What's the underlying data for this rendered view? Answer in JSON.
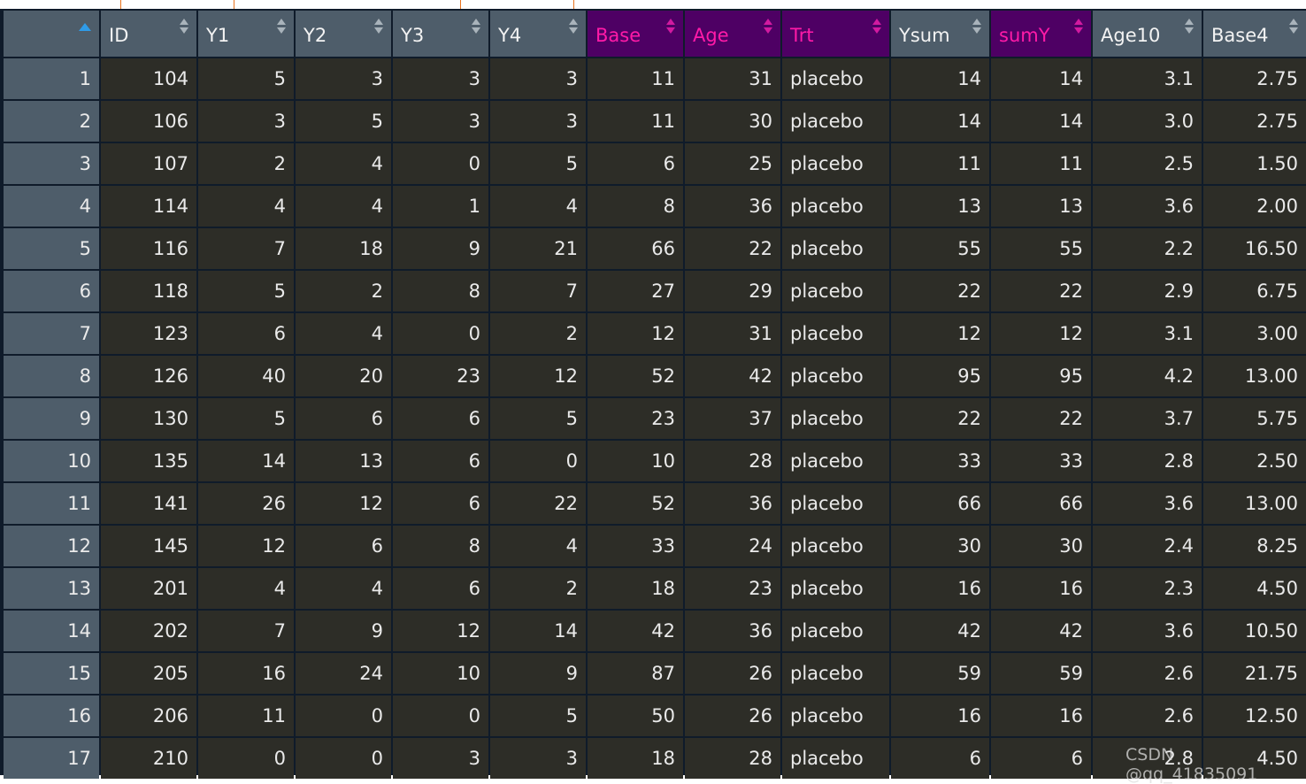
{
  "columns": [
    {
      "key": "rn",
      "label": "",
      "highlight": false,
      "align": "num"
    },
    {
      "key": "ID",
      "label": "ID",
      "highlight": false,
      "align": "num"
    },
    {
      "key": "Y1",
      "label": "Y1",
      "highlight": false,
      "align": "num"
    },
    {
      "key": "Y2",
      "label": "Y2",
      "highlight": false,
      "align": "num"
    },
    {
      "key": "Y3",
      "label": "Y3",
      "highlight": false,
      "align": "num"
    },
    {
      "key": "Y4",
      "label": "Y4",
      "highlight": false,
      "align": "num"
    },
    {
      "key": "Base",
      "label": "Base",
      "highlight": true,
      "align": "num"
    },
    {
      "key": "Age",
      "label": "Age",
      "highlight": true,
      "align": "num"
    },
    {
      "key": "Trt",
      "label": "Trt",
      "highlight": true,
      "align": "left"
    },
    {
      "key": "Ysum",
      "label": "Ysum",
      "highlight": false,
      "align": "num"
    },
    {
      "key": "sumY",
      "label": "sumY",
      "highlight": true,
      "align": "num"
    },
    {
      "key": "Age10",
      "label": "Age10",
      "highlight": false,
      "align": "num"
    },
    {
      "key": "Base4",
      "label": "Base4",
      "highlight": false,
      "align": "num"
    }
  ],
  "sort": {
    "column": "rn",
    "direction": "ascending"
  },
  "rows": [
    [
      "1",
      "104",
      "5",
      "3",
      "3",
      "3",
      "11",
      "31",
      "placebo",
      "14",
      "14",
      "3.1",
      "2.75"
    ],
    [
      "2",
      "106",
      "3",
      "5",
      "3",
      "3",
      "11",
      "30",
      "placebo",
      "14",
      "14",
      "3.0",
      "2.75"
    ],
    [
      "3",
      "107",
      "2",
      "4",
      "0",
      "5",
      "6",
      "25",
      "placebo",
      "11",
      "11",
      "2.5",
      "1.50"
    ],
    [
      "4",
      "114",
      "4",
      "4",
      "1",
      "4",
      "8",
      "36",
      "placebo",
      "13",
      "13",
      "3.6",
      "2.00"
    ],
    [
      "5",
      "116",
      "7",
      "18",
      "9",
      "21",
      "66",
      "22",
      "placebo",
      "55",
      "55",
      "2.2",
      "16.50"
    ],
    [
      "6",
      "118",
      "5",
      "2",
      "8",
      "7",
      "27",
      "29",
      "placebo",
      "22",
      "22",
      "2.9",
      "6.75"
    ],
    [
      "7",
      "123",
      "6",
      "4",
      "0",
      "2",
      "12",
      "31",
      "placebo",
      "12",
      "12",
      "3.1",
      "3.00"
    ],
    [
      "8",
      "126",
      "40",
      "20",
      "23",
      "12",
      "52",
      "42",
      "placebo",
      "95",
      "95",
      "4.2",
      "13.00"
    ],
    [
      "9",
      "130",
      "5",
      "6",
      "6",
      "5",
      "23",
      "37",
      "placebo",
      "22",
      "22",
      "3.7",
      "5.75"
    ],
    [
      "10",
      "135",
      "14",
      "13",
      "6",
      "0",
      "10",
      "28",
      "placebo",
      "33",
      "33",
      "2.8",
      "2.50"
    ],
    [
      "11",
      "141",
      "26",
      "12",
      "6",
      "22",
      "52",
      "36",
      "placebo",
      "66",
      "66",
      "3.6",
      "13.00"
    ],
    [
      "12",
      "145",
      "12",
      "6",
      "8",
      "4",
      "33",
      "24",
      "placebo",
      "30",
      "30",
      "2.4",
      "8.25"
    ],
    [
      "13",
      "201",
      "4",
      "4",
      "6",
      "2",
      "18",
      "23",
      "placebo",
      "16",
      "16",
      "2.3",
      "4.50"
    ],
    [
      "14",
      "202",
      "7",
      "9",
      "12",
      "14",
      "42",
      "36",
      "placebo",
      "42",
      "42",
      "3.6",
      "10.50"
    ],
    [
      "15",
      "205",
      "16",
      "24",
      "10",
      "9",
      "87",
      "26",
      "placebo",
      "59",
      "59",
      "2.6",
      "21.75"
    ],
    [
      "16",
      "206",
      "11",
      "0",
      "0",
      "5",
      "50",
      "26",
      "placebo",
      "16",
      "16",
      "2.6",
      "12.50"
    ],
    [
      "17",
      "210",
      "0",
      "0",
      "3",
      "3",
      "18",
      "28",
      "placebo",
      "6",
      "6",
      "2.8",
      "4.50"
    ]
  ],
  "colors": {
    "header": "#4e5d6a",
    "highlight_header": "#4e0064",
    "highlight_text": "#ff1aa8",
    "cell": "#2d2d27",
    "sort_indicator": "#2f9be8"
  },
  "watermark": "CSDN @qq_41835091"
}
